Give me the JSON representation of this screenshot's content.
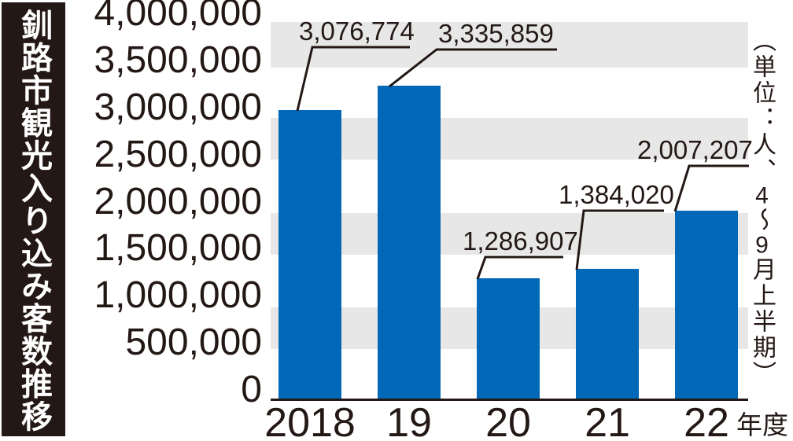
{
  "title": "釧路市観光入り込み客数推移",
  "unit_note": "（単位：人、4〜9月上半期）",
  "chart_data": {
    "type": "bar",
    "title": "釧路市観光入り込み客数推移",
    "unit_note": "（単位：人、4〜9月上半期）",
    "categories": [
      "2018",
      "19",
      "20",
      "21",
      "22"
    ],
    "category_suffix": "年度",
    "values": [
      3076774,
      3335859,
      1286907,
      1384020,
      2007207
    ],
    "value_labels": [
      "3,076,774",
      "3,335,859",
      "1,286,907",
      "1,384,020",
      "2,007,207"
    ],
    "xlabel": "年度",
    "ylabel": "",
    "ylim": [
      0,
      4000000
    ],
    "ytick_step": 500000,
    "yticks": [
      0,
      500000,
      1000000,
      1500000,
      2000000,
      2500000,
      3000000,
      3500000,
      4000000
    ],
    "ytick_labels": [
      "0",
      "500,000",
      "1,000,000",
      "1,500,000",
      "2,000,000",
      "2,500,000",
      "3,000,000",
      "3,500,000",
      "4,000,000"
    ],
    "grid": "alternating horizontal gray bands",
    "legend": "none",
    "colors": {
      "bar": "#0068b6",
      "band": "#e7e7e7",
      "text": "#231815",
      "axis": "#231815",
      "title_bg": "#231815",
      "title_fg": "#ffffff",
      "background": "#ffffff"
    }
  }
}
